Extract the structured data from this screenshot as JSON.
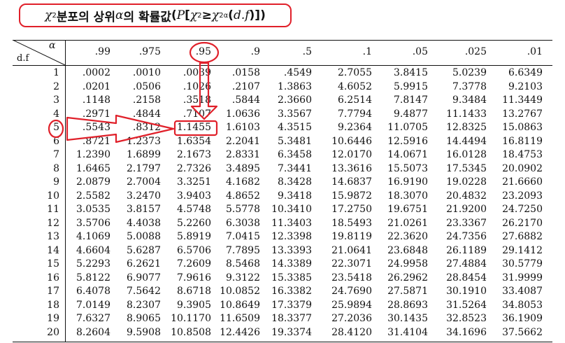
{
  "title": {
    "chi": "χ",
    "sup2": "2",
    "korean": " 분포의 상위 ",
    "alpha": "α",
    "korean2": "의 확률값",
    "expr_open": "(",
    "P": "P",
    "bracket": "[",
    "chi_b": "χ",
    "sup2b": "2",
    "geq": " ≥ ",
    "chi_c": "χ",
    "sup2c": "2",
    "sub_alpha": "α",
    "paren": "(",
    "df": "d.f",
    "close": ")])"
  },
  "corner": {
    "alpha": "α",
    "df": "d.f"
  },
  "columns": [
    ".99",
    ".975",
    ".95",
    ".9",
    ".5",
    ".1",
    ".05",
    ".025",
    ".01"
  ],
  "rows": [
    {
      "df": "1",
      "values": [
        ".0002",
        ".0010",
        ".0039",
        ".0158",
        ".4549",
        "2.7055",
        "3.8415",
        "5.0239",
        "6.6349"
      ]
    },
    {
      "df": "2",
      "values": [
        ".0201",
        ".0506",
        ".1026",
        ".2107",
        "1.3863",
        "4.6052",
        "5.9915",
        "7.3778",
        "9.2103"
      ]
    },
    {
      "df": "3",
      "values": [
        ".1148",
        ".2158",
        ".3518",
        ".5844",
        "2.3660",
        "6.2514",
        "7.8147",
        "9.3484",
        "11.3449"
      ]
    },
    {
      "df": "4",
      "values": [
        ".2971",
        ".4844",
        ".7107",
        "1.0636",
        "3.3567",
        "7.7794",
        "9.4877",
        "11.1433",
        "13.2767"
      ]
    },
    {
      "df": "5",
      "values": [
        ".5543",
        ".8312",
        "1.1455",
        "1.6103",
        "4.3515",
        "9.2364",
        "11.0705",
        "12.8325",
        "15.0863"
      ]
    },
    {
      "df": "6",
      "values": [
        ".8721",
        "1.2373",
        "1.6354",
        "2.2041",
        "5.3481",
        "10.6446",
        "12.5916",
        "14.4494",
        "16.8119"
      ]
    },
    {
      "df": "7",
      "values": [
        "1.2390",
        "1.6899",
        "2.1673",
        "2.8331",
        "6.3458",
        "12.0170",
        "14.0671",
        "16.0128",
        "18.4753"
      ]
    },
    {
      "df": "8",
      "values": [
        "1.6465",
        "2.1797",
        "2.7326",
        "3.4895",
        "7.3441",
        "13.3616",
        "15.5073",
        "17.5345",
        "20.0902"
      ]
    },
    {
      "df": "9",
      "values": [
        "2.0879",
        "2.7004",
        "3.3251",
        "4.1682",
        "8.3428",
        "14.6837",
        "16.9190",
        "19.0228",
        "21.6660"
      ]
    },
    {
      "df": "10",
      "values": [
        "2.5582",
        "3.2470",
        "3.9403",
        "4.8652",
        "9.3418",
        "15.9872",
        "18.3070",
        "20.4832",
        "23.2093"
      ]
    },
    {
      "df": "11",
      "values": [
        "3.0535",
        "3.8157",
        "4.5748",
        "5.5778",
        "10.3410",
        "17.2750",
        "19.6751",
        "21.9200",
        "24.7250"
      ]
    },
    {
      "df": "12",
      "values": [
        "3.5706",
        "4.4038",
        "5.2260",
        "6.3038",
        "11.3403",
        "18.5493",
        "21.0261",
        "23.3367",
        "26.2170"
      ]
    },
    {
      "df": "13",
      "values": [
        "4.1069",
        "5.0088",
        "5.8919",
        "7.0415",
        "12.3398",
        "19.8119",
        "22.3620",
        "24.7356",
        "27.6882"
      ]
    },
    {
      "df": "14",
      "values": [
        "4.6604",
        "5.6287",
        "6.5706",
        "7.7895",
        "13.3393",
        "21.0641",
        "23.6848",
        "26.1189",
        "29.1412"
      ]
    },
    {
      "df": "15",
      "values": [
        "5.2293",
        "6.2621",
        "7.2609",
        "8.5468",
        "14.3389",
        "22.3071",
        "24.9958",
        "27.4884",
        "30.5779"
      ]
    },
    {
      "df": "16",
      "values": [
        "5.8122",
        "6.9077",
        "7.9616",
        "9.3122",
        "15.3385",
        "23.5418",
        "26.2962",
        "28.8454",
        "31.9999"
      ]
    },
    {
      "df": "17",
      "values": [
        "6.4078",
        "7.5642",
        "8.6718",
        "10.0852",
        "16.3382",
        "24.7690",
        "27.5871",
        "30.1910",
        "33.4087"
      ]
    },
    {
      "df": "18",
      "values": [
        "7.0149",
        "8.2307",
        "9.3905",
        "10.8649",
        "17.3379",
        "25.9894",
        "28.8693",
        "31.5264",
        "34.8053"
      ]
    },
    {
      "df": "19",
      "values": [
        "7.6327",
        "8.9065",
        "10.1170",
        "11.6509",
        "18.3377",
        "27.2036",
        "30.1435",
        "32.8523",
        "36.1909"
      ]
    },
    {
      "df": "20",
      "values": [
        "8.2604",
        "9.5908",
        "10.8508",
        "12.4426",
        "19.3374",
        "28.4120",
        "31.4104",
        "34.1696",
        "37.5662"
      ]
    }
  ],
  "highlight": {
    "column": ".95",
    "df": "5",
    "value": "1.1455",
    "color": "#e0202a"
  }
}
